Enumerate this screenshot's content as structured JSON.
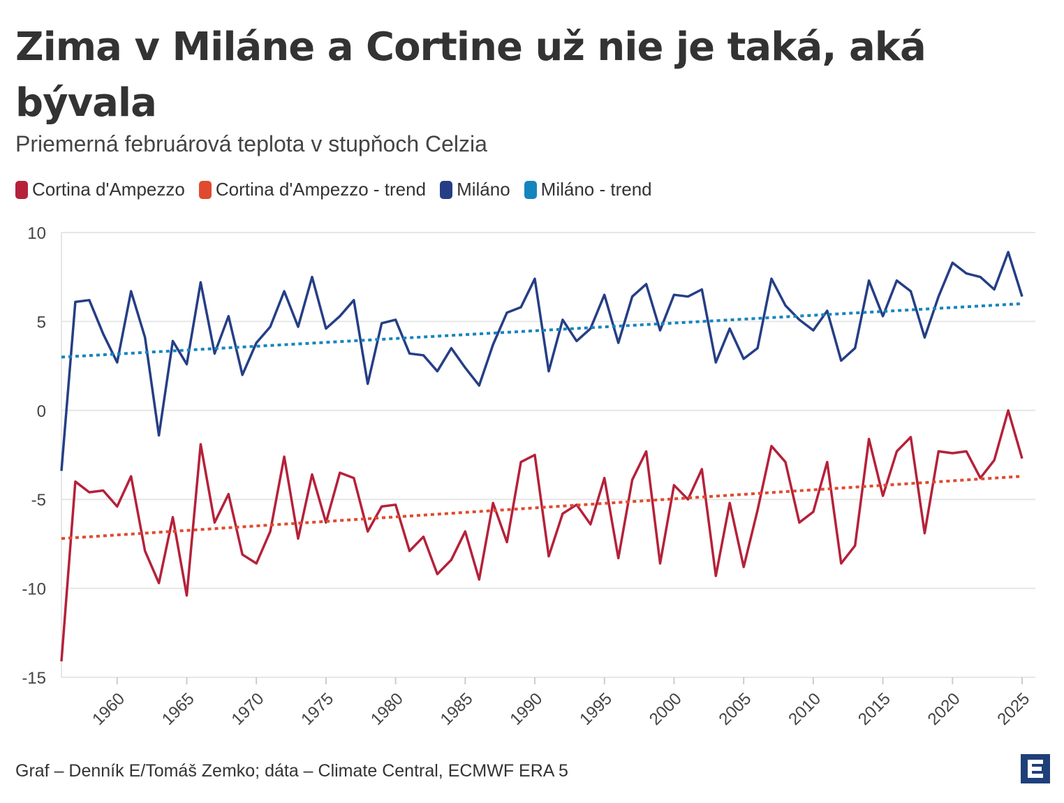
{
  "title": "Zima v Miláne a Cortine už nie je taká, aká bývala",
  "subtitle": "Priemerná februárová teplota v stupňoch Celzia",
  "footer": "Graf – Denník E/Tomáš Zemko; dáta – Climate Central, ECMWF ERA 5",
  "logo_icon": "denník-e-logo-icon",
  "chart_data": {
    "type": "line",
    "title": "Zima v Miláne a Cortine už nie je taká, aká bývala",
    "subtitle": "Priemerná februárová teplota v stupňoch Celzia",
    "xlabel": "",
    "ylabel": "",
    "xlim": [
      1956,
      2025
    ],
    "ylim": [
      -15,
      10
    ],
    "y_ticks": [
      10,
      5,
      0,
      -5,
      -10,
      -15
    ],
    "x_ticks": [
      1960,
      1965,
      1970,
      1975,
      1980,
      1985,
      1990,
      1995,
      2000,
      2005,
      2010,
      2015,
      2020,
      2025
    ],
    "grid": true,
    "legend_position": "top-left",
    "x": [
      1956,
      1957,
      1958,
      1959,
      1960,
      1961,
      1962,
      1963,
      1964,
      1965,
      1966,
      1967,
      1968,
      1969,
      1970,
      1971,
      1972,
      1973,
      1974,
      1975,
      1976,
      1977,
      1978,
      1979,
      1980,
      1981,
      1982,
      1983,
      1984,
      1985,
      1986,
      1987,
      1988,
      1989,
      1990,
      1991,
      1992,
      1993,
      1994,
      1995,
      1996,
      1997,
      1998,
      1999,
      2000,
      2001,
      2002,
      2003,
      2004,
      2005,
      2006,
      2007,
      2008,
      2009,
      2010,
      2011,
      2012,
      2013,
      2014,
      2015,
      2016,
      2017,
      2018,
      2019,
      2020,
      2021,
      2022,
      2023,
      2024,
      2025
    ],
    "series": [
      {
        "name": "Cortina d'Ampezzo",
        "color": "#b5213a",
        "dashed": false,
        "values": [
          -14.1,
          -4.0,
          -4.6,
          -4.5,
          -5.4,
          -3.7,
          -7.9,
          -9.7,
          -6.0,
          -10.4,
          -1.9,
          -6.3,
          -4.7,
          -8.1,
          -8.6,
          -6.8,
          -2.6,
          -7.2,
          -3.6,
          -6.3,
          -3.5,
          -3.8,
          -6.8,
          -5.4,
          -5.3,
          -7.9,
          -7.1,
          -9.2,
          -8.4,
          -6.8,
          -9.5,
          -5.2,
          -7.4,
          -2.9,
          -2.5,
          -8.2,
          -5.8,
          -5.3,
          -6.4,
          -3.8,
          -8.3,
          -3.9,
          -2.3,
          -8.6,
          -4.2,
          -5.0,
          -3.3,
          -9.3,
          -5.2,
          -8.8,
          -5.6,
          -2.0,
          -2.9,
          -6.3,
          -5.7,
          -2.9,
          -8.6,
          -7.6,
          -1.6,
          -4.8,
          -2.3,
          -1.5,
          -6.9,
          -2.3,
          -2.4,
          -2.3,
          -3.8,
          -2.8,
          0.0,
          -2.7
        ]
      },
      {
        "name": "Cortina d'Ampezzo - trend",
        "color": "#e04a2f",
        "dashed": true,
        "values_endpoints": {
          "1956": -7.2,
          "2025": -3.7
        }
      },
      {
        "name": "Miláno",
        "color": "#253e85",
        "dashed": false,
        "values": [
          -3.4,
          6.1,
          6.2,
          4.3,
          2.7,
          6.7,
          4.1,
          -1.4,
          3.9,
          2.6,
          7.2,
          3.2,
          5.3,
          2.0,
          3.8,
          4.7,
          6.7,
          4.7,
          7.5,
          4.6,
          5.3,
          6.2,
          1.5,
          4.9,
          5.1,
          3.2,
          3.1,
          2.2,
          3.5,
          2.4,
          1.4,
          3.7,
          5.5,
          5.8,
          7.4,
          2.2,
          5.1,
          3.9,
          4.6,
          6.5,
          3.8,
          6.4,
          7.1,
          4.5,
          6.5,
          6.4,
          6.8,
          2.7,
          4.6,
          2.9,
          3.5,
          7.4,
          5.9,
          5.1,
          4.5,
          5.6,
          2.8,
          3.5,
          7.3,
          5.3,
          7.3,
          6.7,
          4.1,
          6.4,
          8.3,
          7.7,
          7.5,
          6.8,
          8.9,
          6.4
        ]
      },
      {
        "name": "Miláno - trend",
        "color": "#1585bd",
        "dashed": true,
        "values_endpoints": {
          "1956": 3.0,
          "2025": 6.0
        }
      }
    ]
  }
}
